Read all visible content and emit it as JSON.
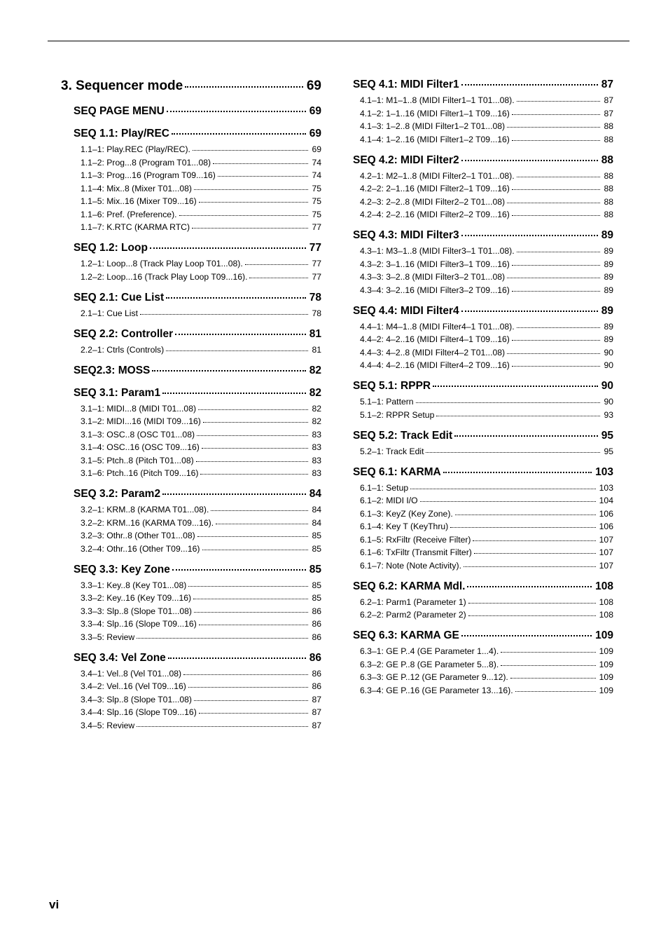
{
  "page_footer": "vi",
  "left": [
    {
      "type": "chapter",
      "label": "3. Sequencer mode",
      "page": "69"
    },
    {
      "type": "section",
      "label": "SEQ PAGE MENU",
      "page": "69"
    },
    {
      "type": "section",
      "label": "SEQ 1.1: Play/REC",
      "page": "69"
    },
    {
      "type": "entry",
      "label": "1.1–1: Play.REC (Play/REC).",
      "page": "69"
    },
    {
      "type": "entry",
      "label": "1.1–2: Prog...8 (Program T01...08)",
      "page": "74"
    },
    {
      "type": "entry",
      "label": "1.1–3: Prog...16 (Program T09...16)",
      "page": "74"
    },
    {
      "type": "entry",
      "label": "1.1–4: Mix..8 (Mixer T01...08)",
      "page": "75"
    },
    {
      "type": "entry",
      "label": "1.1–5: Mix..16 (Mixer T09...16)",
      "page": "75"
    },
    {
      "type": "entry",
      "label": "1.1–6: Pref. (Preference).",
      "page": "75"
    },
    {
      "type": "entry",
      "label": "1.1–7: K.RTC (KARMA RTC)",
      "page": "77"
    },
    {
      "type": "section",
      "label": "SEQ 1.2: Loop",
      "page": "77"
    },
    {
      "type": "entry",
      "label": "1.2–1: Loop...8 (Track Play Loop T01...08).",
      "page": "77"
    },
    {
      "type": "entry",
      "label": "1.2–2: Loop...16 (Track Play Loop T09...16).",
      "page": "77"
    },
    {
      "type": "section",
      "label": "SEQ 2.1: Cue List",
      "page": "78"
    },
    {
      "type": "entry",
      "label": "2.1–1: Cue List",
      "page": "78"
    },
    {
      "type": "section",
      "label": "SEQ 2.2: Controller",
      "page": "81"
    },
    {
      "type": "entry",
      "label": "2.2–1: Ctrls (Controls)",
      "page": "81"
    },
    {
      "type": "section",
      "label": "SEQ2.3: MOSS",
      "page": "82"
    },
    {
      "type": "section",
      "label": "SEQ 3.1: Param1",
      "page": "82"
    },
    {
      "type": "entry",
      "label": "3.1–1: MIDI...8 (MIDI T01...08)",
      "page": "82"
    },
    {
      "type": "entry",
      "label": "3.1–2: MIDI...16 (MIDI T09...16)",
      "page": "82"
    },
    {
      "type": "entry",
      "label": "3.1–3: OSC..8 (OSC T01...08)",
      "page": "83"
    },
    {
      "type": "entry",
      "label": "3.1–4: OSC..16 (OSC T09...16)",
      "page": "83"
    },
    {
      "type": "entry",
      "label": "3.1–5: Ptch..8 (Pitch T01...08)",
      "page": "83"
    },
    {
      "type": "entry",
      "label": "3.1–6: Ptch..16 (Pitch T09...16)",
      "page": "83"
    },
    {
      "type": "section",
      "label": "SEQ 3.2: Param2",
      "page": "84"
    },
    {
      "type": "entry",
      "label": "3.2–1: KRM..8 (KARMA T01...08).",
      "page": "84"
    },
    {
      "type": "entry",
      "label": "3.2–2: KRM..16 (KARMA T09...16).",
      "page": "84"
    },
    {
      "type": "entry",
      "label": "3.2–3: Othr..8 (Other T01...08)",
      "page": "85"
    },
    {
      "type": "entry",
      "label": "3.2–4: Othr..16 (Other T09...16)",
      "page": "85"
    },
    {
      "type": "section",
      "label": "SEQ 3.3: Key Zone",
      "page": "85"
    },
    {
      "type": "entry",
      "label": "3.3–1: Key..8 (Key T01...08)",
      "page": "85"
    },
    {
      "type": "entry",
      "label": "3.3–2: Key..16 (Key T09...16)",
      "page": "85"
    },
    {
      "type": "entry",
      "label": "3.3–3: Slp..8 (Slope T01...08)",
      "page": "86"
    },
    {
      "type": "entry",
      "label": "3.3–4: Slp..16 (Slope T09...16)",
      "page": "86"
    },
    {
      "type": "entry",
      "label": "3.3–5: Review",
      "page": "86"
    },
    {
      "type": "section",
      "label": "SEQ 3.4: Vel Zone",
      "page": "86"
    },
    {
      "type": "entry",
      "label": "3.4–1: Vel..8 (Vel T01...08)",
      "page": "86"
    },
    {
      "type": "entry",
      "label": "3.4–2: Vel..16 (Vel T09...16)",
      "page": "86"
    },
    {
      "type": "entry",
      "label": "3.4–3: Slp..8 (Slope T01...08)",
      "page": "87"
    },
    {
      "type": "entry",
      "label": "3.4–4: Slp..16 (Slope T09...16)",
      "page": "87"
    },
    {
      "type": "entry",
      "label": "3.4–5: Review",
      "page": "87"
    }
  ],
  "right": [
    {
      "type": "section",
      "label": "SEQ 4.1: MIDI Filter1",
      "page": "87"
    },
    {
      "type": "entry",
      "label": "4.1–1: M1–1..8 (MIDI Filter1–1 T01...08).",
      "page": "87"
    },
    {
      "type": "entry",
      "label": "4.1–2: 1–1..16 (MIDI Filter1–1 T09...16)",
      "page": "87"
    },
    {
      "type": "entry",
      "label": "4.1–3: 1–2..8 (MIDI Filter1–2 T01...08)",
      "page": "88"
    },
    {
      "type": "entry",
      "label": "4.1–4: 1–2..16 (MIDI Filter1–2 T09...16)",
      "page": "88"
    },
    {
      "type": "section",
      "label": "SEQ 4.2: MIDI Filter2",
      "page": "88"
    },
    {
      "type": "entry",
      "label": "4.2–1: M2–1..8 (MIDI Filter2–1 T01...08).",
      "page": "88"
    },
    {
      "type": "entry",
      "label": "4.2–2: 2–1..16 (MIDI Filter2–1 T09...16)",
      "page": "88"
    },
    {
      "type": "entry",
      "label": "4.2–3: 2–2..8 (MIDI Filter2–2 T01...08)",
      "page": "88"
    },
    {
      "type": "entry",
      "label": "4.2–4: 2–2..16 (MIDI Filter2–2 T09...16)",
      "page": "88"
    },
    {
      "type": "section",
      "label": "SEQ 4.3: MIDI Filter3",
      "page": "89"
    },
    {
      "type": "entry",
      "label": "4.3–1: M3–1..8 (MIDI Filter3–1 T01...08).",
      "page": "89"
    },
    {
      "type": "entry",
      "label": "4.3–2: 3–1..16 (MIDI Filter3–1 T09...16)",
      "page": "89"
    },
    {
      "type": "entry",
      "label": "4.3–3: 3–2..8 (MIDI Filter3–2 T01...08)",
      "page": "89"
    },
    {
      "type": "entry",
      "label": "4.3–4: 3–2..16 (MIDI Filter3–2 T09...16)",
      "page": "89"
    },
    {
      "type": "section",
      "label": "SEQ 4.4: MIDI Filter4",
      "page": "89"
    },
    {
      "type": "entry",
      "label": "4.4–1: M4–1..8 (MIDI Filter4–1 T01...08).",
      "page": "89"
    },
    {
      "type": "entry",
      "label": "4.4–2: 4–2..16 (MIDI Filter4–1 T09...16)",
      "page": "89"
    },
    {
      "type": "entry",
      "label": "4.4–3: 4–2..8 (MIDI Filter4–2 T01...08)",
      "page": "90"
    },
    {
      "type": "entry",
      "label": "4.4–4: 4–2..16 (MIDI Filter4–2 T09...16)",
      "page": "90"
    },
    {
      "type": "section",
      "label": "SEQ 5.1: RPPR",
      "page": "90"
    },
    {
      "type": "entry",
      "label": "5.1–1: Pattern",
      "page": "90"
    },
    {
      "type": "entry",
      "label": "5.1–2: RPPR Setup",
      "page": "93"
    },
    {
      "type": "section",
      "label": "SEQ 5.2: Track Edit",
      "page": "95"
    },
    {
      "type": "entry",
      "label": "5.2–1: Track Edit",
      "page": "95"
    },
    {
      "type": "section",
      "label": "SEQ 6.1: KARMA",
      "page": "103"
    },
    {
      "type": "entry",
      "label": "6.1–1: Setup",
      "page": "103"
    },
    {
      "type": "entry",
      "label": "6.1–2: MIDI I/O",
      "page": "104"
    },
    {
      "type": "entry",
      "label": "6.1–3: KeyZ (Key Zone).",
      "page": "106"
    },
    {
      "type": "entry",
      "label": "6.1–4: Key T (KeyThru)",
      "page": "106"
    },
    {
      "type": "entry",
      "label": "6.1–5: RxFiltr (Receive Filter)",
      "page": "107"
    },
    {
      "type": "entry",
      "label": "6.1–6: TxFiltr (Transmit Filter)",
      "page": "107"
    },
    {
      "type": "entry",
      "label": "6.1–7: Note (Note Activity).",
      "page": "107"
    },
    {
      "type": "section",
      "label": "SEQ 6.2: KARMA Mdl.",
      "page": "108"
    },
    {
      "type": "entry",
      "label": "6.2–1: Parm1 (Parameter 1)",
      "page": "108"
    },
    {
      "type": "entry",
      "label": "6.2–2: Parm2 (Parameter 2)",
      "page": "108"
    },
    {
      "type": "section",
      "label": "SEQ 6.3: KARMA GE",
      "page": "109"
    },
    {
      "type": "entry",
      "label": "6.3–1: GE P..4 (GE Parameter 1...4).",
      "page": "109"
    },
    {
      "type": "entry",
      "label": "6.3–2: GE P..8 (GE Parameter 5...8).",
      "page": "109"
    },
    {
      "type": "entry",
      "label": "6.3–3: GE P..12 (GE Parameter 9...12).",
      "page": "109"
    },
    {
      "type": "entry",
      "label": "6.3–4: GE P..16 (GE Parameter 13...16).",
      "page": "109"
    }
  ]
}
